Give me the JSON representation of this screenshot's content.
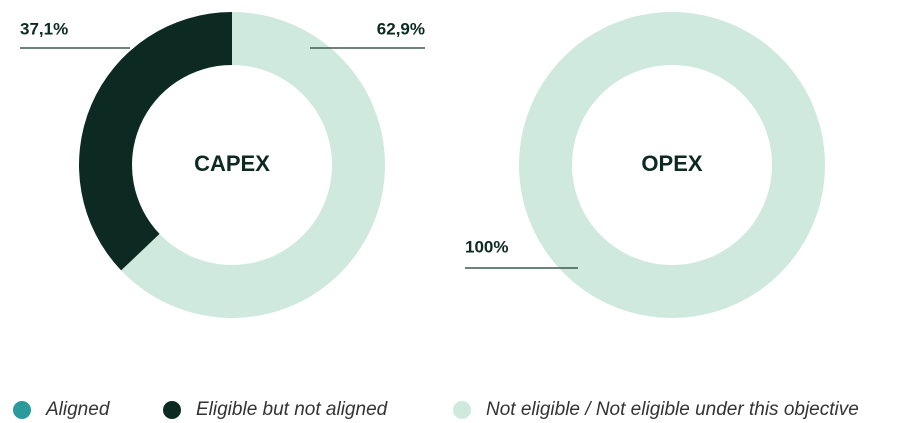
{
  "legend": [
    {
      "name": "Aligned",
      "color": "#2a9a9c"
    },
    {
      "name": "Eligible but not aligned",
      "color": "#0c2a22"
    },
    {
      "name": "Not eligible / Not eligible under this objective",
      "color": "#cfe9df"
    }
  ],
  "chart_data": [
    {
      "type": "pie",
      "title": "CAPEX",
      "values": [
        0,
        37.1,
        62.9
      ],
      "value_labels": [
        null,
        "37,1%",
        "62,9%"
      ]
    },
    {
      "type": "pie",
      "title": "OPEX",
      "values": [
        0,
        0,
        100
      ],
      "value_labels": [
        null,
        null,
        "100%"
      ]
    }
  ]
}
